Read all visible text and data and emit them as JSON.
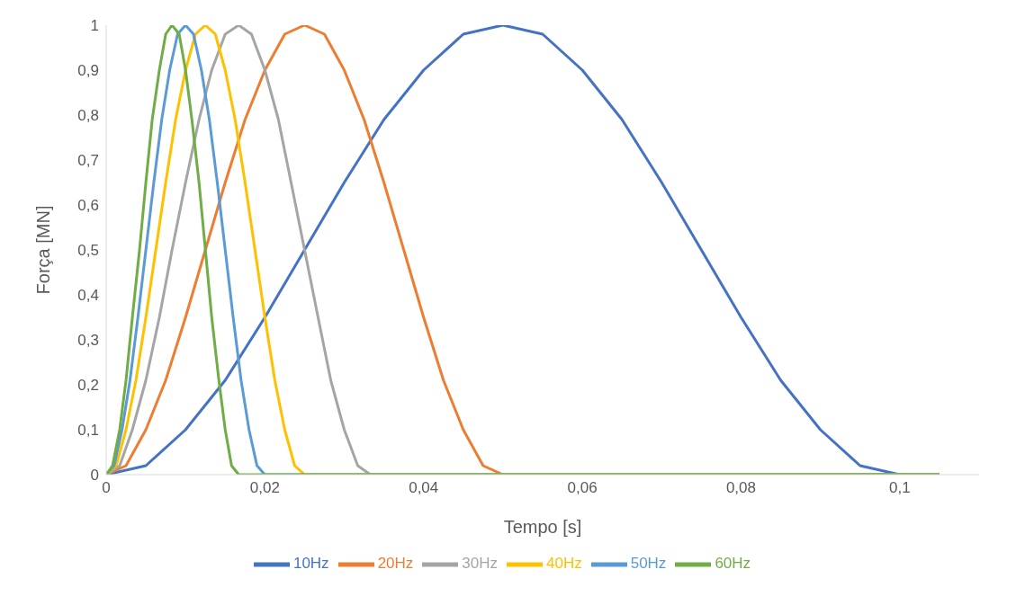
{
  "chart_data": {
    "type": "line",
    "xlabel": "Tempo [s]",
    "ylabel": "Força [MN]",
    "xlim": [
      0,
      0.11
    ],
    "ylim": [
      0,
      1
    ],
    "xticks": [
      0,
      {
        "value": 0.02,
        "label": "0,02"
      },
      {
        "value": 0.04,
        "label": "0,04"
      },
      {
        "value": 0.06,
        "label": "0,06"
      },
      {
        "value": 0.08,
        "label": "0,08"
      },
      {
        "value": 0.1,
        "label": "0,1"
      }
    ],
    "yticks": [
      0,
      {
        "value": 0.1,
        "label": "0,1"
      },
      {
        "value": 0.2,
        "label": "0,2"
      },
      {
        "value": 0.3,
        "label": "0,3"
      },
      {
        "value": 0.4,
        "label": "0,4"
      },
      {
        "value": 0.5,
        "label": "0,5"
      },
      {
        "value": 0.6,
        "label": "0,6"
      },
      {
        "value": 0.7,
        "label": "0,7"
      },
      {
        "value": 0.8,
        "label": "0,8"
      },
      {
        "value": 0.9,
        "label": "0,9"
      },
      1
    ],
    "grid": false,
    "legend": "bottom",
    "marker": "none",
    "line_style": "solid",
    "series": [
      {
        "name": "10Hz",
        "color": "#4472c4",
        "x": [
          0,
          0.005,
          0.01,
          0.015,
          0.02,
          0.025,
          0.03,
          0.035,
          0.04,
          0.045,
          0.05,
          0.055,
          0.06,
          0.065,
          0.07,
          0.075,
          0.08,
          0.085,
          0.09,
          0.095,
          0.1,
          0.105
        ],
        "values": [
          0,
          0.02,
          0.1,
          0.21,
          0.35,
          0.5,
          0.65,
          0.79,
          0.9,
          0.98,
          1,
          0.98,
          0.9,
          0.79,
          0.65,
          0.5,
          0.35,
          0.21,
          0.1,
          0.02,
          0,
          0
        ]
      },
      {
        "name": "20Hz",
        "color": "#ed7d31",
        "x": [
          0,
          0.0025,
          0.005,
          0.0075,
          0.01,
          0.0125,
          0.015,
          0.0175,
          0.02,
          0.0225,
          0.025,
          0.0275,
          0.03,
          0.0325,
          0.035,
          0.0375,
          0.04,
          0.0425,
          0.045,
          0.0475,
          0.05,
          0.105
        ],
        "values": [
          0,
          0.02,
          0.1,
          0.21,
          0.35,
          0.5,
          0.65,
          0.79,
          0.9,
          0.98,
          1,
          0.98,
          0.9,
          0.79,
          0.65,
          0.5,
          0.35,
          0.21,
          0.1,
          0.02,
          0,
          0
        ]
      },
      {
        "name": "30Hz",
        "color": "#a5a5a5",
        "x": [
          0,
          0.0017,
          0.0033,
          0.005,
          0.0067,
          0.0083,
          0.01,
          0.0117,
          0.0133,
          0.015,
          0.0167,
          0.0183,
          0.02,
          0.0217,
          0.0233,
          0.025,
          0.0267,
          0.0283,
          0.03,
          0.0317,
          0.0333,
          0.105
        ],
        "values": [
          0,
          0.02,
          0.1,
          0.21,
          0.35,
          0.5,
          0.65,
          0.79,
          0.9,
          0.98,
          1,
          0.98,
          0.9,
          0.79,
          0.65,
          0.5,
          0.35,
          0.21,
          0.1,
          0.02,
          0,
          0
        ]
      },
      {
        "name": "40Hz",
        "color": "#ffc000",
        "x": [
          0,
          0.00125,
          0.0025,
          0.00375,
          0.005,
          0.00625,
          0.0075,
          0.00875,
          0.01,
          0.01125,
          0.0125,
          0.01375,
          0.015,
          0.01625,
          0.0175,
          0.01875,
          0.02,
          0.02125,
          0.0225,
          0.02375,
          0.025,
          0.105
        ],
        "values": [
          0,
          0.02,
          0.1,
          0.21,
          0.35,
          0.5,
          0.65,
          0.79,
          0.9,
          0.98,
          1,
          0.98,
          0.9,
          0.79,
          0.65,
          0.5,
          0.35,
          0.21,
          0.1,
          0.02,
          0,
          0
        ]
      },
      {
        "name": "50Hz",
        "color": "#5b9bd5",
        "x": [
          0,
          0.001,
          0.002,
          0.003,
          0.004,
          0.005,
          0.006,
          0.007,
          0.008,
          0.009,
          0.01,
          0.011,
          0.012,
          0.013,
          0.014,
          0.015,
          0.016,
          0.017,
          0.018,
          0.019,
          0.02,
          0.105
        ],
        "values": [
          0,
          0.02,
          0.1,
          0.21,
          0.35,
          0.5,
          0.65,
          0.79,
          0.9,
          0.98,
          1,
          0.98,
          0.9,
          0.79,
          0.65,
          0.5,
          0.35,
          0.21,
          0.1,
          0.02,
          0,
          0
        ]
      },
      {
        "name": "60Hz",
        "color": "#70ad47",
        "x": [
          0,
          0.0008,
          0.0017,
          0.0025,
          0.0033,
          0.0042,
          0.005,
          0.0058,
          0.0067,
          0.0075,
          0.0083,
          0.0092,
          0.01,
          0.0108,
          0.0117,
          0.0125,
          0.0133,
          0.0142,
          0.015,
          0.0158,
          0.0167,
          0.105
        ],
        "values": [
          0,
          0.02,
          0.1,
          0.21,
          0.35,
          0.5,
          0.65,
          0.79,
          0.9,
          0.98,
          1,
          0.98,
          0.9,
          0.79,
          0.65,
          0.5,
          0.35,
          0.21,
          0.1,
          0.02,
          0,
          0
        ]
      }
    ]
  }
}
